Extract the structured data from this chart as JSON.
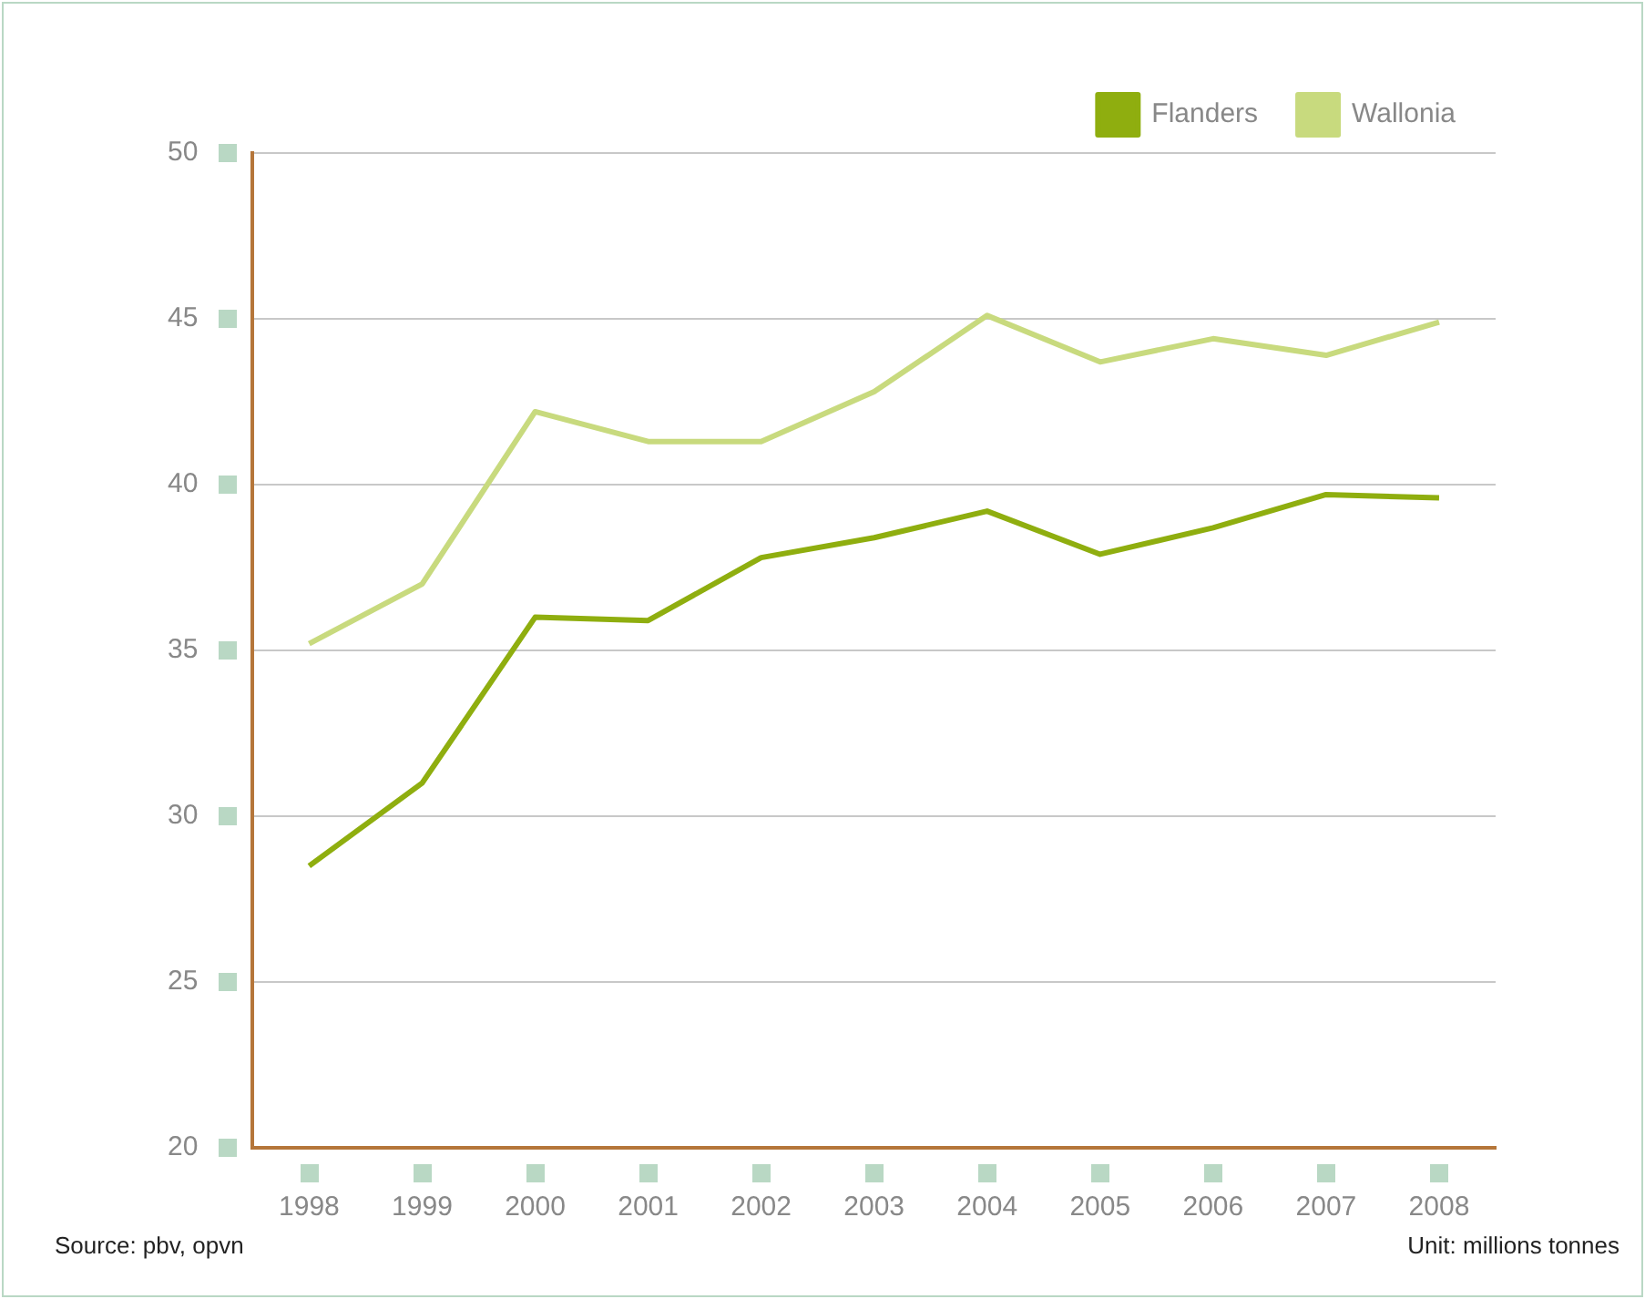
{
  "chart_data": {
    "type": "line",
    "categories": [
      "1998",
      "1999",
      "2000",
      "2001",
      "2002",
      "2003",
      "2004",
      "2005",
      "2006",
      "2007",
      "2008"
    ],
    "series": [
      {
        "name": "Flanders",
        "color": "#8fae0f",
        "values": [
          28.5,
          31.0,
          36.0,
          35.9,
          37.8,
          38.4,
          39.2,
          37.9,
          38.7,
          39.7,
          39.6
        ]
      },
      {
        "name": "Wallonia",
        "color": "#c8da7e",
        "values": [
          35.2,
          37.0,
          42.2,
          41.3,
          41.3,
          42.8,
          45.1,
          43.7,
          44.4,
          43.9,
          44.9
        ]
      }
    ],
    "ylim": [
      20,
      50
    ],
    "yticks": [
      20,
      25,
      30,
      35,
      40,
      45,
      50
    ],
    "grid": "y",
    "legend": "top right",
    "marker": "none",
    "line_style": "solid",
    "annotations": [
      "Source: pbv, opvn",
      "Unit: millions tonnes"
    ]
  }
}
